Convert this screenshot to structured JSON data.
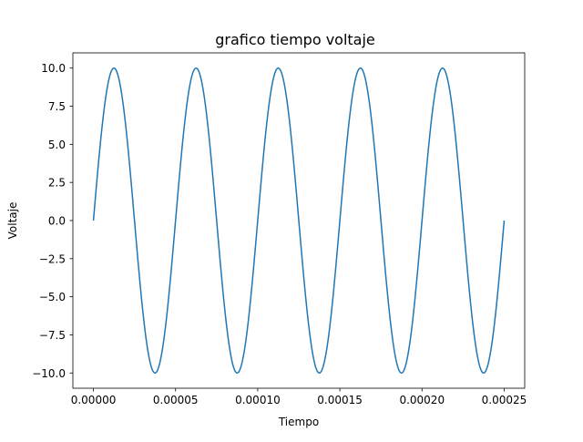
{
  "chart_data": {
    "type": "line",
    "title": "grafico tiempo voltaje",
    "xlabel": "Tiempo",
    "ylabel": "Voltaje",
    "xlim": [
      -1.25e-05,
      0.0002625
    ],
    "ylim": [
      -11.0,
      11.0
    ],
    "grid": false,
    "line_color": "#1f77b4",
    "x_ticks": [
      {
        "value": 0.0,
        "label": "0.00000"
      },
      {
        "value": 5e-05,
        "label": "0.00005"
      },
      {
        "value": 0.0001,
        "label": "0.00010"
      },
      {
        "value": 0.00015,
        "label": "0.00015"
      },
      {
        "value": 0.0002,
        "label": "0.00020"
      },
      {
        "value": 0.00025,
        "label": "0.00025"
      }
    ],
    "y_ticks": [
      {
        "value": -10.0,
        "label": "−10.0"
      },
      {
        "value": -7.5,
        "label": "−7.5"
      },
      {
        "value": -5.0,
        "label": "−5.0"
      },
      {
        "value": -2.5,
        "label": "−2.5"
      },
      {
        "value": 0.0,
        "label": "0.0"
      },
      {
        "value": 2.5,
        "label": "2.5"
      },
      {
        "value": 5.0,
        "label": "5.0"
      },
      {
        "value": 7.5,
        "label": "7.5"
      },
      {
        "value": 10.0,
        "label": "10.0"
      }
    ],
    "series": [
      {
        "function": "sine",
        "amplitude": 10,
        "frequency_hz": 20000,
        "x_start": 0.0,
        "x_end": 0.00025
      }
    ]
  }
}
